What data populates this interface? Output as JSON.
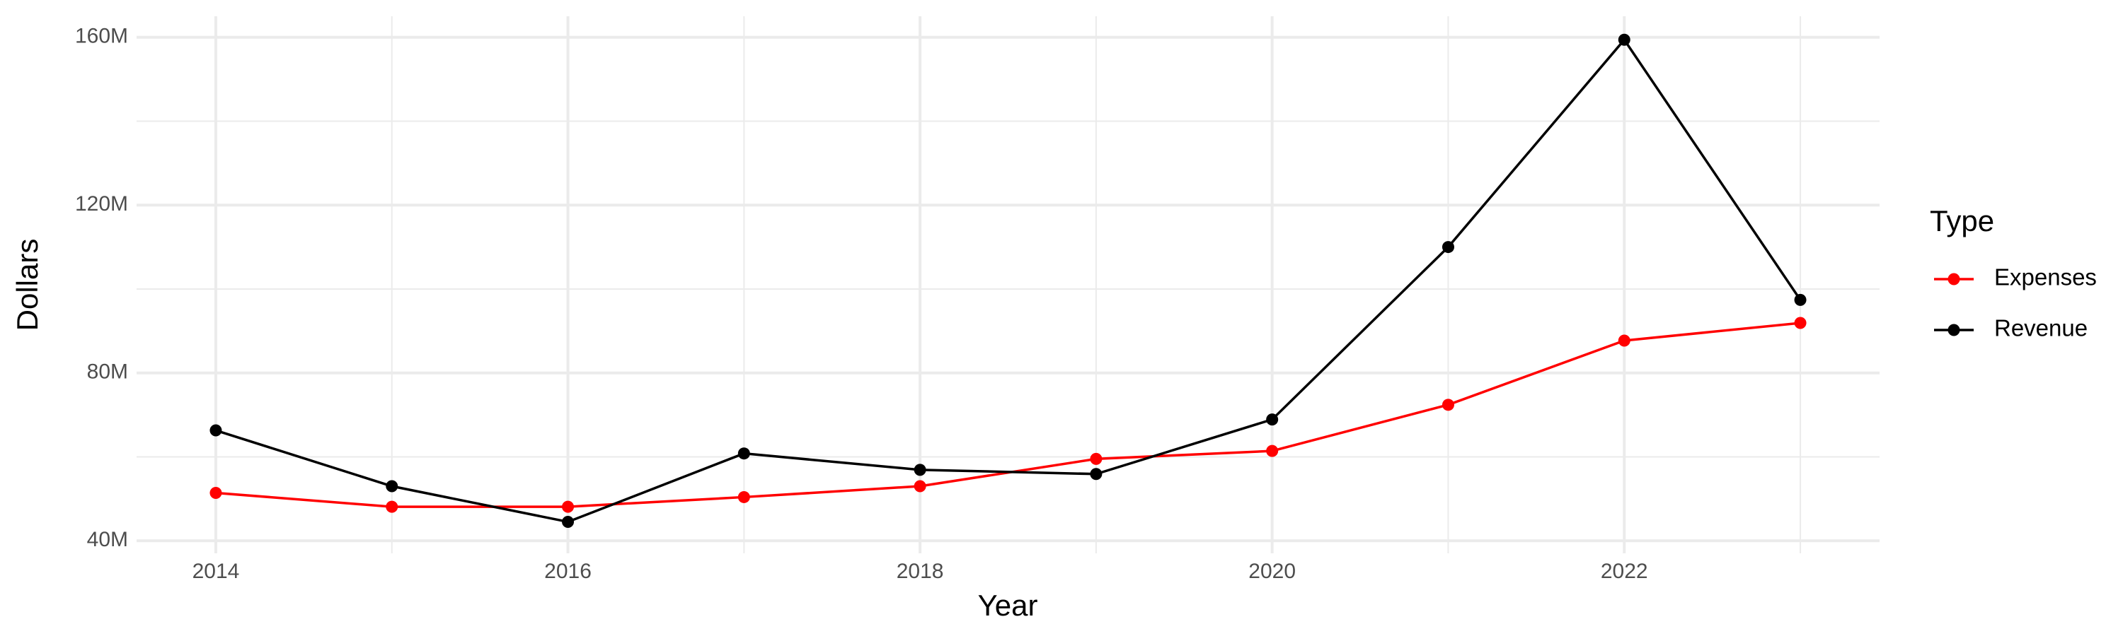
{
  "chart_data": {
    "type": "line",
    "x_label": "Year",
    "y_label": "Dollars",
    "legend_title": "Type",
    "x": [
      2014,
      2015,
      2016,
      2017,
      2018,
      2019,
      2020,
      2021,
      2022,
      2023
    ],
    "series": [
      {
        "name": "Expenses",
        "color": "#ff0000",
        "values": [
          51.4,
          48.1,
          48.1,
          50.4,
          53.0,
          59.5,
          61.4,
          72.4,
          87.7,
          91.9
        ]
      },
      {
        "name": "Revenue",
        "color": "#000000",
        "values": [
          66.3,
          53.0,
          44.5,
          60.8,
          56.9,
          55.9,
          68.9,
          110.0,
          159.4,
          97.4
        ]
      }
    ],
    "xlim": [
      2013.55,
      2023.45
    ],
    "ylim": [
      37,
      165
    ],
    "xticks": [
      2014,
      2016,
      2018,
      2020,
      2022
    ],
    "x_minor_grid": [
      2015,
      2017,
      2019,
      2021,
      2023
    ],
    "yticks": [
      {
        "value": 40,
        "label": "40M"
      },
      {
        "value": 80,
        "label": "80M"
      },
      {
        "value": 120,
        "label": "120M"
      },
      {
        "value": 160,
        "label": "160M"
      }
    ],
    "y_minor_grid": [
      60,
      100,
      140
    ],
    "grid": true,
    "legend": "right"
  }
}
